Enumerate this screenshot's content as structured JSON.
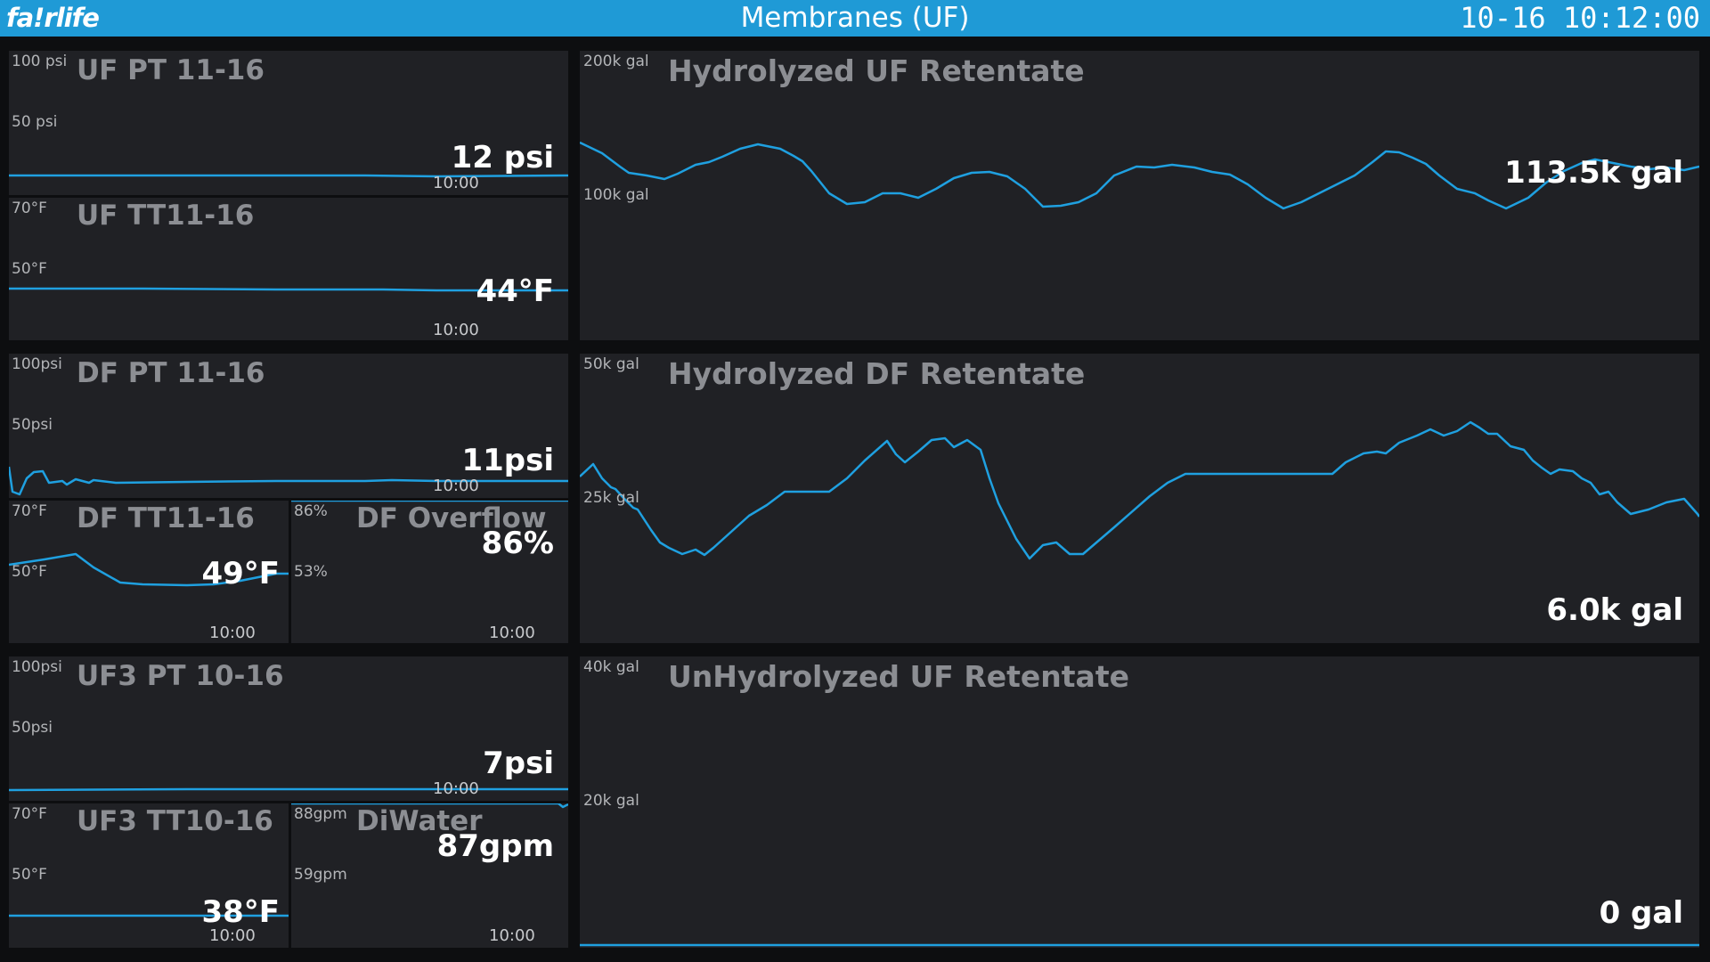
{
  "header": {
    "logo": "fa!rlife",
    "title": "Membranes (UF)",
    "clock": "10-16  10:12:00",
    "bar_color": "#1f9ad6"
  },
  "colors": {
    "trend": "#1fa0e0",
    "panel": "#202125",
    "background": "#0d0e10"
  },
  "small_panels": {
    "uf_pt": {
      "title": "UF PT 11-16",
      "axis_top": "100 psi",
      "axis_mid": "50 psi",
      "value": "12 psi",
      "time": "10:00"
    },
    "uf_tt": {
      "title": "UF TT11-16",
      "axis_top": "70°F",
      "axis_mid": "50°F",
      "value": "44°F",
      "time": "10:00"
    },
    "df_pt": {
      "title": "DF PT 11-16",
      "axis_top": "100psi",
      "axis_mid": "50psi",
      "value": "11psi",
      "time": "10:00"
    },
    "df_tt": {
      "title": "DF TT11-16",
      "axis_top": "70°F",
      "axis_mid": "50°F",
      "value": "49°F",
      "time": "10:00"
    },
    "df_overflow": {
      "title": "DF Overflow",
      "axis_top": "86%",
      "axis_mid": "53%",
      "value": "86%",
      "time": "10:00"
    },
    "uf3_pt": {
      "title": "UF3 PT 10-16",
      "axis_top": "100psi",
      "axis_mid": "50psi",
      "value": "7psi",
      "time": "10:00"
    },
    "uf3_tt": {
      "title": "UF3 TT10-16",
      "axis_top": "70°F",
      "axis_mid": "50°F",
      "value": "38°F",
      "time": "10:00"
    },
    "diwater": {
      "title": "DiWater",
      "axis_top": "88gpm",
      "axis_mid": "59gpm",
      "value": "87gpm",
      "time": "10:00"
    }
  },
  "large_panels": {
    "hyd_uf": {
      "title": "Hydrolyzed UF Retentate",
      "axis_top": "200k gal",
      "axis_mid": "100k gal",
      "value": "113.5k gal"
    },
    "hyd_df": {
      "title": "Hydrolyzed DF Retentate",
      "axis_top": "50k gal",
      "axis_mid": "25k gal",
      "value": "6.0k gal"
    },
    "unhyd_uf": {
      "title": "UnHydrolyzed UF Retentate",
      "axis_top": "40k gal",
      "axis_mid": "20k gal",
      "value": "0 gal"
    }
  }
}
